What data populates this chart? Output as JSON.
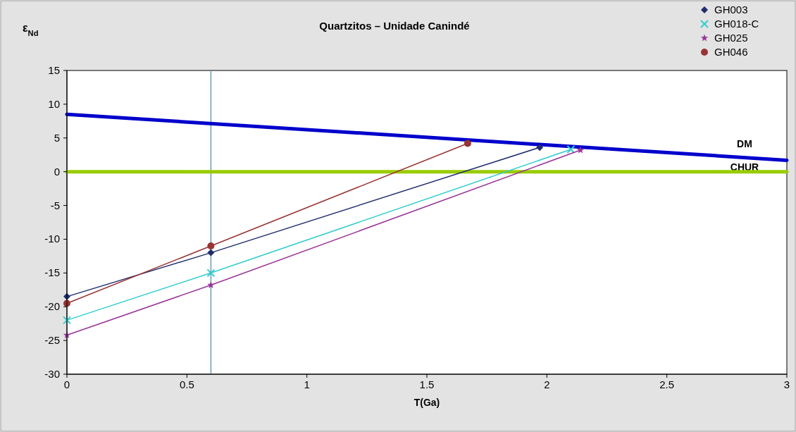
{
  "chart_data": {
    "type": "line",
    "title": "Quartzitos – Unidade Canindé",
    "xlabel": "T(Ga)",
    "ylabel": "ε$_{Nd}$",
    "xlim": [
      0,
      3
    ],
    "xticks": [
      0,
      0.5,
      1,
      1.5,
      2,
      2.5,
      3
    ],
    "ylim": [
      -30,
      15
    ],
    "yticks": [
      -30,
      -25,
      -20,
      -15,
      -10,
      -5,
      0,
      5,
      10,
      15
    ],
    "grid": false,
    "legend": "top right",
    "series": [
      {
        "name": "DM",
        "x": [
          0,
          3
        ],
        "values": [
          8.5,
          1.7
        ],
        "color": "#0000cc",
        "marker": "none"
      },
      {
        "name": "CHUR",
        "x": [
          0,
          3
        ],
        "values": [
          0,
          0
        ],
        "color": "#99cc00",
        "marker": "none"
      },
      {
        "name": "GH003",
        "x": [
          0,
          0.6,
          1.97
        ],
        "values": [
          -18.5,
          -12,
          3.6
        ],
        "color": "#1f2d6e",
        "marker": "diamond"
      },
      {
        "name": "GH018-C",
        "x": [
          0,
          0.6,
          2.1
        ],
        "values": [
          -22,
          -15,
          3.3
        ],
        "color": "#33cccc",
        "marker": "cross"
      },
      {
        "name": "GH025",
        "x": [
          0,
          0.6,
          2.14
        ],
        "values": [
          -24.2,
          -16.8,
          3.2
        ],
        "color": "#993399",
        "marker": "star"
      },
      {
        "name": "GH046",
        "x": [
          0,
          0.6,
          1.67
        ],
        "values": [
          -19.5,
          -11,
          4.2
        ],
        "color": "#993333",
        "marker": "circle"
      }
    ],
    "ref_lines": [
      {
        "axis": "x",
        "value": 0.6,
        "color": "#6699bb"
      }
    ]
  }
}
